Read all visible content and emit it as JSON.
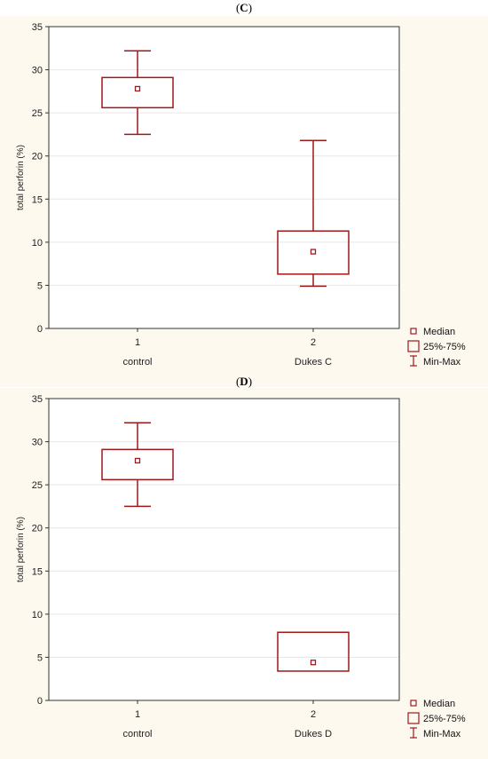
{
  "colors": {
    "background": "#fdf9ef",
    "plot_area": "#ffffff",
    "box": "#a01818",
    "axis": "#333333",
    "grid": "#e6e6e6"
  },
  "legend": {
    "median": "Median",
    "iqr": "25%-75%",
    "range": "Min-Max"
  },
  "chart_data": [
    {
      "id": "C",
      "type": "box",
      "title": "C",
      "ylabel": "total perforin (%)",
      "ylim": [
        0,
        35
      ],
      "yticks": [
        0,
        5,
        10,
        15,
        20,
        25,
        30,
        35
      ],
      "grid": true,
      "legend_position": "bottom-right",
      "categories": [
        {
          "tick": "1",
          "name": "control",
          "min": 22.5,
          "q1": 25.6,
          "median": 27.8,
          "q3": 29.1,
          "max": 32.2
        },
        {
          "tick": "2",
          "name": "Dukes C",
          "min": 4.9,
          "q1": 6.3,
          "median": 8.9,
          "q3": 11.3,
          "max": 21.8
        }
      ]
    },
    {
      "id": "D",
      "type": "box",
      "title": "D",
      "ylabel": "total perforin (%)",
      "ylim": [
        0,
        35
      ],
      "yticks": [
        0,
        5,
        10,
        15,
        20,
        25,
        30,
        35
      ],
      "grid": true,
      "legend_position": "bottom-right",
      "categories": [
        {
          "tick": "1",
          "name": "control",
          "min": 22.5,
          "q1": 25.6,
          "median": 27.8,
          "q3": 29.1,
          "max": 32.2
        },
        {
          "tick": "2",
          "name": "Dukes D",
          "min": 3.4,
          "q1": 3.4,
          "median": 4.4,
          "q3": 7.9,
          "max": 7.9
        }
      ]
    }
  ]
}
